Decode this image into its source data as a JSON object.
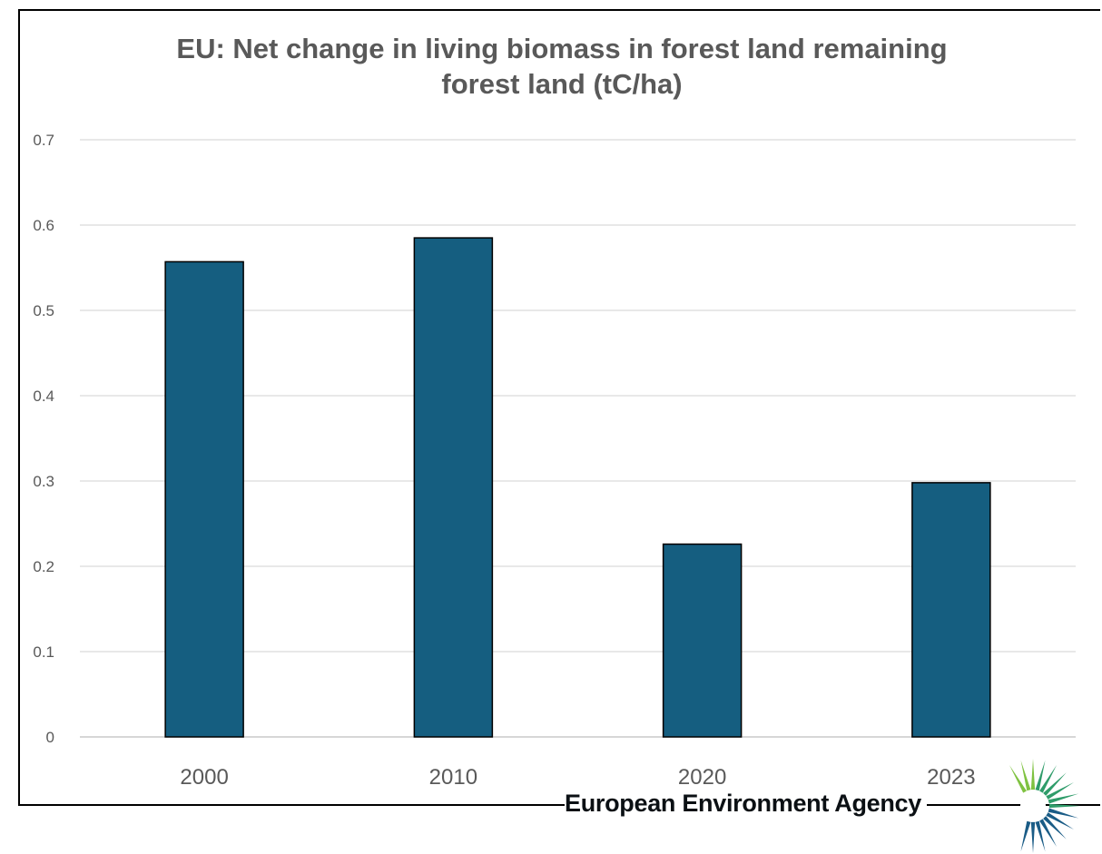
{
  "chart_data": {
    "type": "bar",
    "title_lines": [
      "EU: Net change in living biomass in forest land remaining",
      "forest land (tC/ha)"
    ],
    "xlabel": "",
    "ylabel": "",
    "categories": [
      "2000",
      "2010",
      "2020",
      "2023"
    ],
    "values": [
      0.557,
      0.585,
      0.226,
      0.298
    ],
    "ylim": [
      0,
      0.7
    ],
    "yticks": [
      "0",
      "0.1",
      "0.2",
      "0.3",
      "0.4",
      "0.5",
      "0.6",
      "0.7"
    ],
    "grid": true,
    "legend": "none",
    "bar_color": "#155e80"
  },
  "branding": {
    "org_name": "European Environment Agency",
    "logo_icon": "eea-sun-logo-icon",
    "logo_colors": [
      "#1a5c86",
      "#2f9c6a",
      "#7fc241"
    ]
  }
}
